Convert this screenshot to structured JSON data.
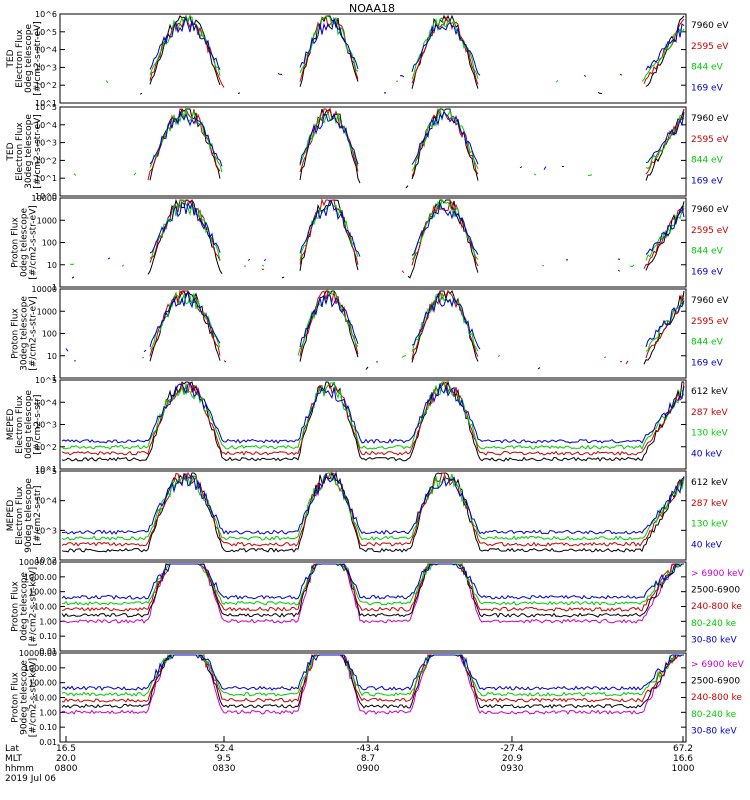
{
  "chart_data": {
    "type": "line",
    "title": "NOAA18",
    "panels": [
      {
        "ylabel": [
          "TED",
          "Electron Flux",
          "0deg telescope",
          "[#/cm2-s-str-eV]"
        ],
        "ylog": true,
        "yticks": [
          "10^1",
          "10^2",
          "10^3",
          "10^4",
          "10^5",
          "10^6"
        ],
        "series": [
          {
            "name": "7960 eV",
            "color": "#000000"
          },
          {
            "name": "2595 eV",
            "color": "#cc0000"
          },
          {
            "name": "844 eV",
            "color": "#00cc00"
          },
          {
            "name": "169 eV",
            "color": "#0000cc"
          }
        ]
      },
      {
        "ylabel": [
          "TED",
          "Electron Flux",
          "30deg telescope",
          "[#/cm2-s-str-eV]"
        ],
        "ylog": true,
        "yticks": [
          "10^0",
          "10^1",
          "10^2",
          "10^3",
          "10^4",
          "10^5"
        ],
        "series": [
          {
            "name": "7960 eV",
            "color": "#000000"
          },
          {
            "name": "2595 eV",
            "color": "#cc0000"
          },
          {
            "name": "844 eV",
            "color": "#00cc00"
          },
          {
            "name": "169 eV",
            "color": "#0000cc"
          }
        ]
      },
      {
        "ylabel": [
          "Proton Flux",
          "0deg telescope",
          "[#/cm2-s-str-eV]"
        ],
        "ylog": true,
        "yticks": [
          "1",
          "10",
          "100",
          "1000",
          "10000"
        ],
        "series": [
          {
            "name": "7960 eV",
            "color": "#000000"
          },
          {
            "name": "2595 eV",
            "color": "#cc0000"
          },
          {
            "name": "844 eV",
            "color": "#00cc00"
          },
          {
            "name": "169 eV",
            "color": "#0000cc"
          }
        ]
      },
      {
        "ylabel": [
          "Proton Flux",
          "30deg telescope",
          "[#/cm2-s-str-eV]"
        ],
        "ylog": true,
        "yticks": [
          "1",
          "10",
          "100",
          "1000",
          "10000"
        ],
        "series": [
          {
            "name": "7960 eV",
            "color": "#000000"
          },
          {
            "name": "2595 eV",
            "color": "#cc0000"
          },
          {
            "name": "844 eV",
            "color": "#00cc00"
          },
          {
            "name": "169 eV",
            "color": "#0000cc"
          }
        ]
      },
      {
        "ylabel": [
          "MEPED",
          "Electron Flux",
          "0deg telescope",
          "[#/cm2-s-str]"
        ],
        "ylog": true,
        "yticks": [
          "10^1",
          "10^2",
          "10^3",
          "10^4",
          "10^5"
        ],
        "series": [
          {
            "name": "612 keV",
            "color": "#000000"
          },
          {
            "name": "287 keV",
            "color": "#cc0000"
          },
          {
            "name": "130 keV",
            "color": "#00cc00"
          },
          {
            "name": "40 keV",
            "color": "#0000cc"
          }
        ]
      },
      {
        "ylabel": [
          "MEPED",
          "Electron Flux",
          "90deg telescope",
          "[#/cm2-s-str]"
        ],
        "ylog": true,
        "yticks": [
          "10^2",
          "10^3",
          "10^4",
          "10^5"
        ],
        "series": [
          {
            "name": "612 keV",
            "color": "#000000"
          },
          {
            "name": "287 keV",
            "color": "#cc0000"
          },
          {
            "name": "130 keV",
            "color": "#00cc00"
          },
          {
            "name": "40 keV",
            "color": "#0000cc"
          }
        ]
      },
      {
        "ylabel": [
          "Proton Flux",
          "0deg telescope",
          "[#/cm2-s-str-keV]"
        ],
        "ylog": true,
        "yticks": [
          "0.01",
          "0.10",
          "1.00",
          "10.00",
          "100.00",
          "1000.00",
          "10000.00"
        ],
        "series": [
          {
            "name": "> 6900 keV",
            "color": "#cc00cc"
          },
          {
            "name": "2500-6900",
            "color": "#000000"
          },
          {
            "name": "240-800 ke",
            "color": "#cc0000"
          },
          {
            "name": "80-240 ke",
            "color": "#00cc00"
          },
          {
            "name": "30-80 keV",
            "color": "#0000cc"
          }
        ]
      },
      {
        "ylabel": [
          "Proton Flux",
          "90deg telescope",
          "[#/cm2-s-str-keV]"
        ],
        "ylog": true,
        "yticks": [
          "0.01",
          "0.10",
          "1.00",
          "10.00",
          "100.00",
          "1000.00",
          "10000.00"
        ],
        "series": [
          {
            "name": "> 6900 keV",
            "color": "#cc00cc"
          },
          {
            "name": "2500-6900",
            "color": "#000000"
          },
          {
            "name": "240-800 ke",
            "color": "#cc0000"
          },
          {
            "name": "80-240 ke",
            "color": "#00cc00"
          },
          {
            "name": "30-80 keV",
            "color": "#0000cc"
          }
        ]
      }
    ],
    "x_axis": {
      "row_labels": [
        "Lat",
        "MLT",
        "hhmm"
      ],
      "ticks": [
        {
          "lat": "16.5",
          "mlt": "20.0",
          "hhmm": "0800"
        },
        {
          "lat": "52.4",
          "mlt": "9.5",
          "hhmm": "0830"
        },
        {
          "lat": "-43.4",
          "mlt": "8.7",
          "hhmm": "0900"
        },
        {
          "lat": "-27.4",
          "mlt": "20.9",
          "hhmm": "0930"
        },
        {
          "lat": "67.2",
          "mlt": "16.6",
          "hhmm": "1000"
        }
      ],
      "date": "2019 Jul 06"
    }
  }
}
